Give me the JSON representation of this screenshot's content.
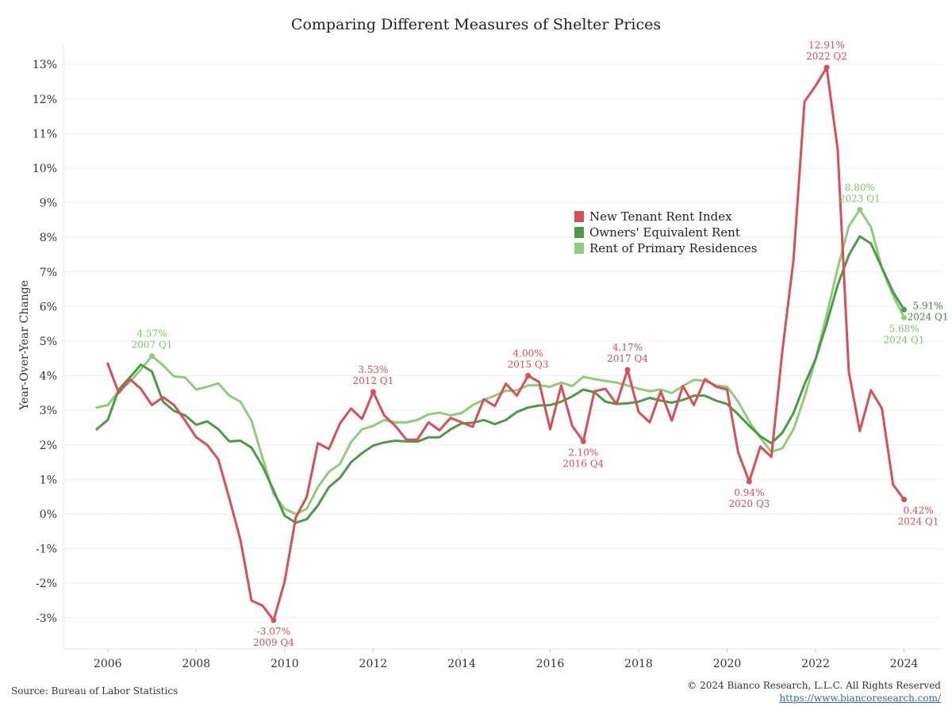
{
  "chart_data": {
    "type": "line",
    "title": "Comparing Different Measures of Shelter Prices",
    "ylabel": "Year-Over-Year Change",
    "xlabel": "",
    "xlim": [
      2005.0,
      2024.85
    ],
    "ylim": [
      -3.9,
      13.6
    ],
    "x_ticks": [
      2006,
      2008,
      2010,
      2012,
      2014,
      2016,
      2018,
      2020,
      2022,
      2024
    ],
    "y_ticks": [
      -3,
      -2,
      -1,
      0,
      1,
      2,
      3,
      4,
      5,
      6,
      7,
      8,
      9,
      10,
      11,
      12,
      13
    ],
    "y_tick_labels": [
      "-3%",
      "-2%",
      "-1%",
      "0%",
      "1%",
      "2%",
      "3%",
      "4%",
      "5%",
      "6%",
      "7%",
      "8%",
      "9%",
      "10%",
      "11%",
      "12%",
      "13%"
    ],
    "grid": "horizontal",
    "legend_position": "center-right",
    "series": [
      {
        "name": "New Tenant Rent Index",
        "color": "#d94f58",
        "x": [
          2006.0,
          2006.25,
          2006.5,
          2006.75,
          2007.0,
          2007.25,
          2007.5,
          2007.75,
          2008.0,
          2008.25,
          2008.5,
          2008.75,
          2009.0,
          2009.25,
          2009.5,
          2009.75,
          2010.0,
          2010.25,
          2010.5,
          2010.75,
          2011.0,
          2011.25,
          2011.5,
          2011.75,
          2012.0,
          2012.25,
          2012.5,
          2012.75,
          2013.0,
          2013.25,
          2013.5,
          2013.75,
          2014.0,
          2014.25,
          2014.5,
          2014.75,
          2015.0,
          2015.25,
          2015.5,
          2015.75,
          2016.0,
          2016.25,
          2016.5,
          2016.75,
          2017.0,
          2017.25,
          2017.5,
          2017.75,
          2018.0,
          2018.25,
          2018.5,
          2018.75,
          2019.0,
          2019.25,
          2019.5,
          2019.75,
          2020.0,
          2020.25,
          2020.5,
          2020.75,
          2021.0,
          2021.25,
          2021.5,
          2021.75,
          2022.0,
          2022.25,
          2022.5,
          2022.75,
          2023.0,
          2023.25,
          2023.5,
          2023.75,
          2024.0
        ],
        "values": [
          4.35,
          3.5,
          3.9,
          3.62,
          3.15,
          3.38,
          3.15,
          2.7,
          2.22,
          2.0,
          1.58,
          0.45,
          -0.75,
          -2.5,
          -2.65,
          -3.07,
          -1.95,
          -0.1,
          0.5,
          2.05,
          1.88,
          2.62,
          3.05,
          2.75,
          3.53,
          2.85,
          2.55,
          2.15,
          2.15,
          2.65,
          2.42,
          2.78,
          2.65,
          2.52,
          3.32,
          3.12,
          3.77,
          3.42,
          4.0,
          3.82,
          2.45,
          3.72,
          2.55,
          2.1,
          3.55,
          3.62,
          3.18,
          4.17,
          2.95,
          2.65,
          3.55,
          2.7,
          3.7,
          3.15,
          3.9,
          3.68,
          3.6,
          1.78,
          0.94,
          1.95,
          1.65,
          4.72,
          7.35,
          11.92,
          12.38,
          12.91,
          10.55,
          4.12,
          2.4,
          3.58,
          3.05,
          0.85,
          0.42
        ]
      },
      {
        "name": "Owners' Equivalent Rent",
        "color": "#4e9a47",
        "x": [
          2005.75,
          2006.0,
          2006.25,
          2006.5,
          2006.75,
          2007.0,
          2007.25,
          2007.5,
          2007.75,
          2008.0,
          2008.25,
          2008.5,
          2008.75,
          2009.0,
          2009.25,
          2009.5,
          2009.75,
          2010.0,
          2010.25,
          2010.5,
          2010.75,
          2011.0,
          2011.25,
          2011.5,
          2011.75,
          2012.0,
          2012.25,
          2012.5,
          2012.75,
          2013.0,
          2013.25,
          2013.5,
          2013.75,
          2014.0,
          2014.25,
          2014.5,
          2014.75,
          2015.0,
          2015.25,
          2015.5,
          2015.75,
          2016.0,
          2016.25,
          2016.5,
          2016.75,
          2017.0,
          2017.25,
          2017.5,
          2017.75,
          2018.0,
          2018.25,
          2018.5,
          2018.75,
          2019.0,
          2019.25,
          2019.5,
          2019.75,
          2020.0,
          2020.25,
          2020.5,
          2020.75,
          2021.0,
          2021.25,
          2021.5,
          2021.75,
          2022.0,
          2022.25,
          2022.5,
          2022.75,
          2023.0,
          2023.25,
          2023.5,
          2023.75,
          2024.0
        ],
        "values": [
          2.45,
          2.72,
          3.6,
          3.95,
          4.32,
          4.12,
          3.25,
          2.98,
          2.85,
          2.58,
          2.68,
          2.45,
          2.1,
          2.12,
          1.92,
          1.38,
          0.68,
          -0.05,
          -0.25,
          -0.15,
          0.25,
          0.78,
          1.05,
          1.5,
          1.76,
          1.98,
          2.07,
          2.12,
          2.1,
          2.09,
          2.22,
          2.22,
          2.45,
          2.62,
          2.64,
          2.72,
          2.6,
          2.72,
          2.95,
          3.08,
          3.14,
          3.15,
          3.25,
          3.4,
          3.6,
          3.52,
          3.25,
          3.18,
          3.2,
          3.25,
          3.36,
          3.28,
          3.22,
          3.3,
          3.42,
          3.42,
          3.28,
          3.18,
          2.88,
          2.55,
          2.25,
          2.05,
          2.35,
          2.92,
          3.75,
          4.48,
          5.5,
          6.62,
          7.48,
          8.03,
          7.82,
          7.12,
          6.42,
          5.91
        ]
      },
      {
        "name": "Rent of Primary Residences",
        "color": "#8fcd7a",
        "x": [
          2005.75,
          2006.0,
          2006.25,
          2006.5,
          2006.75,
          2007.0,
          2007.25,
          2007.5,
          2007.75,
          2008.0,
          2008.25,
          2008.5,
          2008.75,
          2009.0,
          2009.25,
          2009.5,
          2009.75,
          2010.0,
          2010.25,
          2010.5,
          2010.75,
          2011.0,
          2011.25,
          2011.5,
          2011.75,
          2012.0,
          2012.25,
          2012.5,
          2012.75,
          2013.0,
          2013.25,
          2013.5,
          2013.75,
          2014.0,
          2014.25,
          2014.5,
          2014.75,
          2015.0,
          2015.25,
          2015.5,
          2015.75,
          2016.0,
          2016.25,
          2016.5,
          2016.75,
          2017.0,
          2017.25,
          2017.5,
          2017.75,
          2018.0,
          2018.25,
          2018.5,
          2018.75,
          2019.0,
          2019.25,
          2019.5,
          2019.75,
          2020.0,
          2020.25,
          2020.5,
          2020.75,
          2021.0,
          2021.25,
          2021.5,
          2021.75,
          2022.0,
          2022.25,
          2022.5,
          2022.75,
          2023.0,
          2023.25,
          2023.5,
          2023.75,
          2024.0
        ],
        "values": [
          3.08,
          3.15,
          3.55,
          3.82,
          4.18,
          4.57,
          4.3,
          3.98,
          3.95,
          3.6,
          3.68,
          3.78,
          3.42,
          3.25,
          2.7,
          1.62,
          0.58,
          0.15,
          0.0,
          0.15,
          0.78,
          1.22,
          1.45,
          2.08,
          2.45,
          2.55,
          2.72,
          2.65,
          2.65,
          2.72,
          2.88,
          2.93,
          2.85,
          2.92,
          3.15,
          3.3,
          3.42,
          3.56,
          3.58,
          3.72,
          3.72,
          3.68,
          3.8,
          3.7,
          3.97,
          3.9,
          3.85,
          3.8,
          3.72,
          3.62,
          3.55,
          3.6,
          3.5,
          3.7,
          3.88,
          3.85,
          3.72,
          3.68,
          3.25,
          2.68,
          2.2,
          1.8,
          1.9,
          2.45,
          3.38,
          4.48,
          5.75,
          7.1,
          8.32,
          8.8,
          8.3,
          7.1,
          6.32,
          5.68
        ]
      }
    ],
    "annotations": [
      {
        "series": 0,
        "x": 2009.75,
        "y": -3.07,
        "value": "-3.07%",
        "period": "2009 Q4",
        "pos": "below"
      },
      {
        "series": 0,
        "x": 2012.0,
        "y": 3.53,
        "value": "3.53%",
        "period": "2012 Q1",
        "pos": "above"
      },
      {
        "series": 0,
        "x": 2015.5,
        "y": 4.0,
        "value": "4.00%",
        "period": "2015 Q3",
        "pos": "above"
      },
      {
        "series": 0,
        "x": 2016.75,
        "y": 2.1,
        "value": "2.10%",
        "period": "2016 Q4",
        "pos": "below"
      },
      {
        "series": 0,
        "x": 2017.75,
        "y": 4.17,
        "value": "4.17%",
        "period": "2017 Q4",
        "pos": "above"
      },
      {
        "series": 0,
        "x": 2020.5,
        "y": 0.94,
        "value": "0.94%",
        "period": "2020 Q3",
        "pos": "below"
      },
      {
        "series": 0,
        "x": 2022.25,
        "y": 12.91,
        "value": "12.91%",
        "period": "2022 Q2",
        "pos": "above"
      },
      {
        "series": 0,
        "x": 2024.0,
        "y": 0.42,
        "value": "0.42%",
        "period": "2024 Q1",
        "pos": "below-right"
      },
      {
        "series": 1,
        "x": 2024.0,
        "y": 5.91,
        "value": "5.91%",
        "period": "2024 Q1",
        "pos": "right"
      },
      {
        "series": 2,
        "x": 2007.0,
        "y": 4.57,
        "value": "4.57%",
        "period": "2007 Q1",
        "pos": "above"
      },
      {
        "series": 2,
        "x": 2023.0,
        "y": 8.8,
        "value": "8.80%",
        "period": "2023 Q1",
        "pos": "above"
      },
      {
        "series": 2,
        "x": 2024.0,
        "y": 5.68,
        "value": "5.68%",
        "period": "2024 Q1",
        "pos": "below"
      }
    ]
  },
  "footer": {
    "source": "Source: Bureau of Labor Statistics",
    "copyright": "© 2024 Bianco Research, L.L.C. All Rights Reserved",
    "url": "https://www.biancoresearch.com/"
  }
}
